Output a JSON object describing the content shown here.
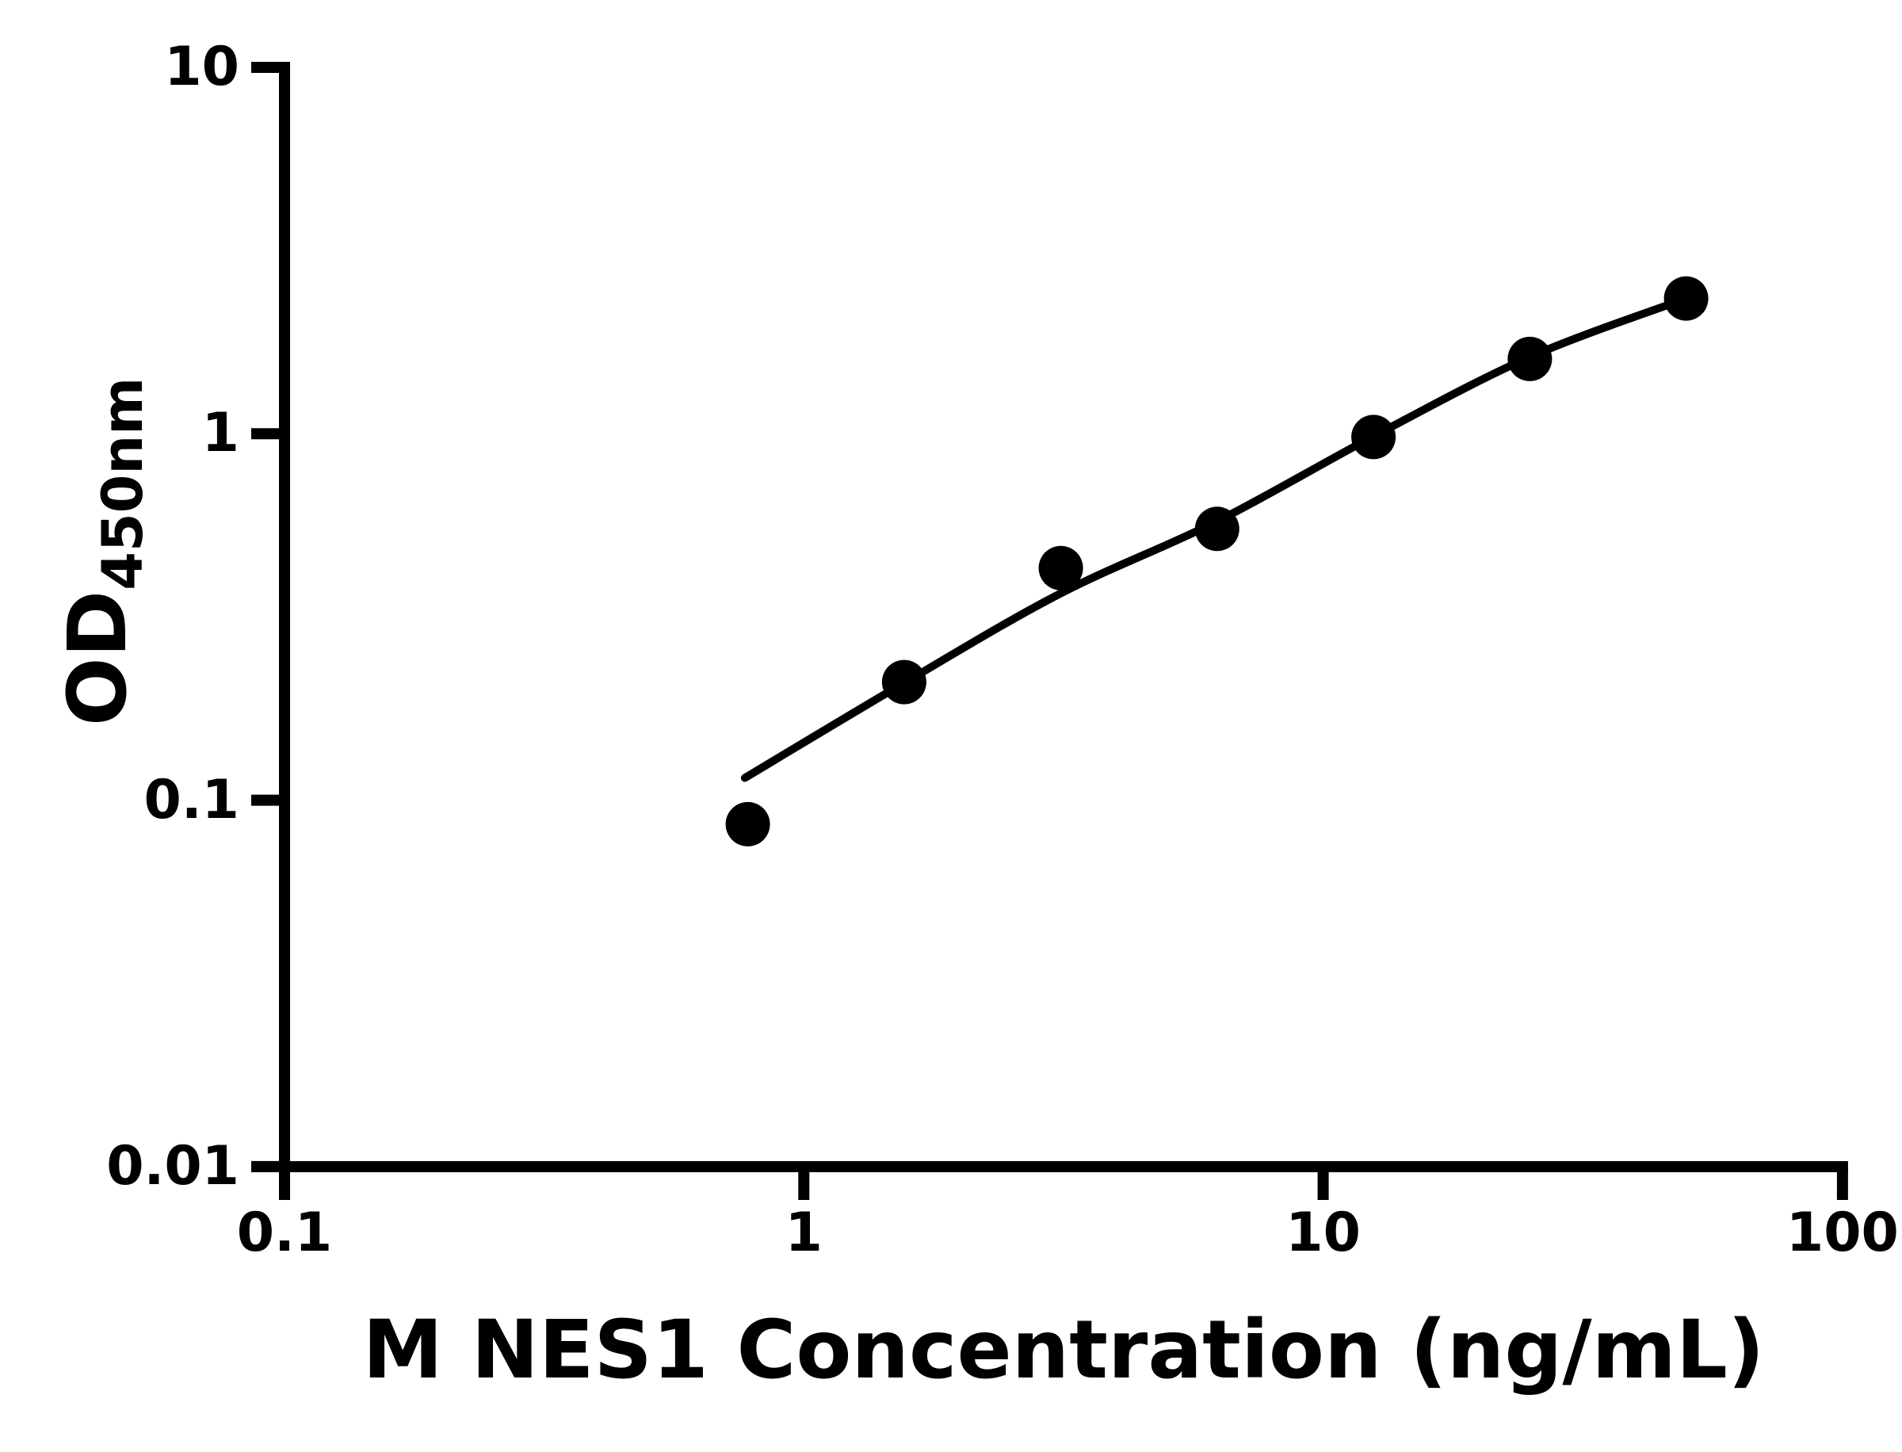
{
  "page": {
    "background": "#ffffff"
  },
  "chart_data": {
    "type": "scatter",
    "title": "",
    "xlabel": "M NES1 Concentration (ng/mL)",
    "ylabel": "OD450nm",
    "ylabel_main": "OD",
    "ylabel_sub": "450nm",
    "x_scale": "log",
    "y_scale": "log",
    "xlim": [
      0.1,
      100
    ],
    "ylim": [
      0.01,
      10
    ],
    "grid": false,
    "legend": false,
    "x_ticks": [
      {
        "value": 0.1,
        "label": "0.1"
      },
      {
        "value": 1,
        "label": "1"
      },
      {
        "value": 10,
        "label": "10"
      },
      {
        "value": 100,
        "label": "100"
      }
    ],
    "y_ticks": [
      {
        "value": 10,
        "label": "10"
      },
      {
        "value": 1,
        "label": "1"
      },
      {
        "value": 0.1,
        "label": "0.1"
      },
      {
        "value": 0.01,
        "label": "0.01"
      }
    ],
    "series": [
      {
        "name": "M NES1 standard curve points",
        "type": "scatter",
        "points": [
          {
            "x": 0.78,
            "y": 0.086
          },
          {
            "x": 1.56,
            "y": 0.21
          },
          {
            "x": 3.125,
            "y": 0.43
          },
          {
            "x": 6.25,
            "y": 0.55
          },
          {
            "x": 12.5,
            "y": 0.98
          },
          {
            "x": 25,
            "y": 1.6
          },
          {
            "x": 50,
            "y": 2.34
          }
        ]
      },
      {
        "name": "fitted curve",
        "type": "line",
        "points": [
          {
            "x": 0.77,
            "y": 0.115
          },
          {
            "x": 1.56,
            "y": 0.209
          },
          {
            "x": 3.125,
            "y": 0.367
          },
          {
            "x": 6.25,
            "y": 0.577
          },
          {
            "x": 12.5,
            "y": 0.984
          },
          {
            "x": 25,
            "y": 1.62
          },
          {
            "x": 50,
            "y": 2.34
          }
        ]
      }
    ],
    "colors": {
      "axis": "#000000",
      "marker": "#000000",
      "line": "#000000",
      "text": "#000000"
    }
  }
}
